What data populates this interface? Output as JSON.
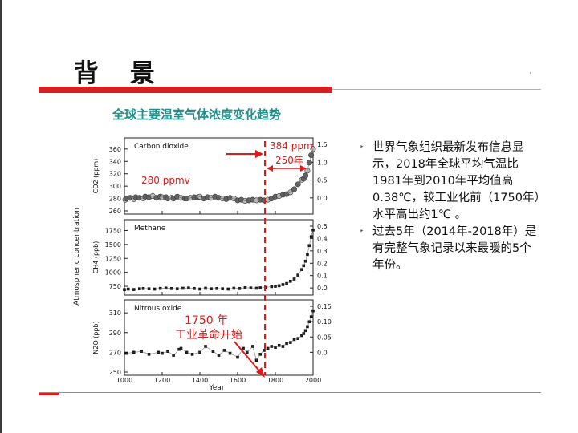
{
  "slide": {
    "title": "背 景",
    "chart_caption": "全球主要温室气体浓度变化趋势",
    "bullets": [
      "世界气象组织最新发布信息显示，2018年全球平均气温比1981年到2010年平均值高0.38℃，较工业化前（1750年）水平高出约1℃ 。",
      "过去5年（2014年-2018年）是有完整气象记录以来最暖的5个年份。"
    ],
    "bullet_glyph": "‣"
  },
  "annotations": {
    "ppm_384": "384 ppm",
    "years_250": "250年",
    "ppmv_280": "280 ppmv",
    "year_1750": "1750 年",
    "industrial_revolution": "工业革命开始"
  },
  "chart_data": [
    {
      "type": "scatter",
      "title": "Carbon dioxide",
      "ylabel": "CO2 (ppm)",
      "ylim": [
        260,
        365
      ],
      "yticks": [
        "260",
        "280",
        "300",
        "320",
        "340",
        "360"
      ],
      "y2ticks": [
        "0.0",
        "0.5",
        "1.0",
        "1.5"
      ],
      "xlim": [
        1000,
        2000
      ],
      "x": [
        1005,
        1010,
        1030,
        1050,
        1060,
        1080,
        1100,
        1110,
        1130,
        1150,
        1170,
        1190,
        1200,
        1220,
        1230,
        1250,
        1260,
        1280,
        1300,
        1320,
        1330,
        1350,
        1370,
        1390,
        1400,
        1420,
        1440,
        1460,
        1480,
        1500,
        1520,
        1540,
        1560,
        1580,
        1600,
        1620,
        1640,
        1660,
        1680,
        1700,
        1720,
        1740,
        1760,
        1780,
        1800,
        1820,
        1840,
        1860,
        1880,
        1900,
        1920,
        1940,
        1950,
        1960,
        1970,
        1980,
        1990,
        2000
      ],
      "y": [
        278,
        280,
        281,
        279,
        282,
        281,
        280,
        283,
        282,
        284,
        281,
        283,
        282,
        282,
        280,
        281,
        280,
        283,
        281,
        280,
        280,
        281,
        282,
        282,
        283,
        280,
        282,
        281,
        283,
        281,
        280,
        279,
        281,
        280,
        277,
        278,
        276,
        277,
        278,
        277,
        278,
        277,
        278,
        280,
        283,
        284,
        286,
        287,
        290,
        295,
        303,
        310,
        312,
        317,
        325,
        338,
        350,
        360
      ],
      "color": "#444444"
    },
    {
      "type": "scatter",
      "title": "Methane",
      "ylabel": "CH4 (ppb)",
      "ylim": [
        650,
        1800
      ],
      "yticks": [
        "750",
        "1000",
        "1250",
        "1500",
        "1750"
      ],
      "y2ticks": [
        "0.0",
        "0.1",
        "0.2",
        "0.3",
        "0.4",
        "0.5"
      ],
      "xlim": [
        1000,
        2000
      ],
      "x": [
        1000,
        1020,
        1050,
        1080,
        1100,
        1130,
        1160,
        1190,
        1220,
        1250,
        1280,
        1310,
        1340,
        1370,
        1400,
        1430,
        1460,
        1490,
        1520,
        1550,
        1580,
        1610,
        1640,
        1670,
        1700,
        1720,
        1750,
        1780,
        1800,
        1820,
        1840,
        1860,
        1880,
        1900,
        1920,
        1940,
        1950,
        1960,
        1970,
        1980,
        1990,
        2000
      ],
      "y": [
        690,
        700,
        692,
        705,
        710,
        705,
        700,
        712,
        718,
        710,
        705,
        715,
        720,
        710,
        700,
        715,
        705,
        710,
        705,
        700,
        715,
        710,
        725,
        720,
        715,
        722,
        730,
        745,
        750,
        760,
        780,
        800,
        840,
        880,
        950,
        1050,
        1120,
        1200,
        1320,
        1480,
        1640,
        1760
      ],
      "color": "#111111"
    },
    {
      "type": "scatter",
      "title": "Nitrous oxide",
      "ylabel": "N2O (ppb)",
      "ylim": [
        250,
        315
      ],
      "yticks": [
        "250",
        "270",
        "290",
        "310"
      ],
      "y2ticks": [
        "0.0",
        "0.05",
        "0.10",
        "0.15"
      ],
      "xlim": [
        1000,
        2000
      ],
      "x": [
        1010,
        1050,
        1090,
        1130,
        1180,
        1200,
        1230,
        1260,
        1290,
        1300,
        1330,
        1360,
        1400,
        1430,
        1470,
        1500,
        1530,
        1560,
        1600,
        1630,
        1650,
        1680,
        1700,
        1720,
        1740,
        1760,
        1780,
        1800,
        1820,
        1840,
        1860,
        1880,
        1900,
        1920,
        1940,
        1950,
        1960,
        1970,
        1980,
        1990,
        2000
      ],
      "y": [
        269,
        270,
        271,
        268,
        270,
        269,
        271,
        267,
        273,
        274,
        270,
        268,
        270,
        276,
        271,
        267,
        272,
        269,
        265,
        274,
        270,
        276,
        262,
        268,
        272,
        274,
        276,
        275,
        277,
        276,
        279,
        280,
        283,
        284,
        287,
        289,
        292,
        296,
        301,
        306,
        312
      ],
      "color": "#111111"
    }
  ],
  "shared_axes": {
    "xlabel": "Year",
    "xticks": [
      "1000",
      "1200",
      "1400",
      "1600",
      "1800",
      "2000"
    ],
    "ylabel_left": "Atmospheric concentration"
  }
}
